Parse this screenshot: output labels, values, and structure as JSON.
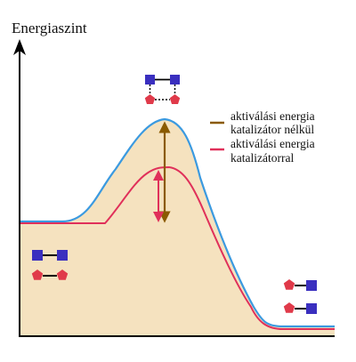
{
  "diagram": {
    "y_axis_label": "Energiaszint",
    "legend": [
      {
        "line1": "aktiválási energia",
        "line2": "katalizátor nélkül",
        "color": "#8a5a00"
      },
      {
        "line1": "aktiválási energia",
        "line2": "katalizátorral",
        "color": "#e0305a"
      }
    ],
    "colors": {
      "axis": "#000000",
      "curve_uncatalyzed": "#3b9ae0",
      "curve_catalyzed": "#e0305a",
      "fill": "#f5e2bf",
      "square": "#3a2fbf",
      "pentagon": "#e03a4a"
    }
  }
}
